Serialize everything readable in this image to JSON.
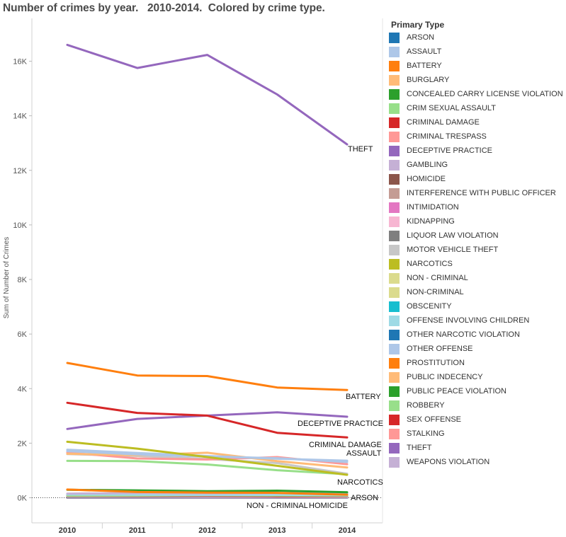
{
  "title": "Number of crimes by year.   2010-2014.  Colored by crime type.",
  "legend": {
    "title": "Primary Type",
    "items": [
      {
        "label": "ARSON",
        "color": "#1f77b4"
      },
      {
        "label": "ASSAULT",
        "color": "#aec7e8"
      },
      {
        "label": "BATTERY",
        "color": "#ff7f0e"
      },
      {
        "label": "BURGLARY",
        "color": "#ffbb78"
      },
      {
        "label": "CONCEALED CARRY LICENSE VIOLATION",
        "color": "#2ca02c"
      },
      {
        "label": "CRIM SEXUAL ASSAULT",
        "color": "#98df8a"
      },
      {
        "label": "CRIMINAL DAMAGE",
        "color": "#d62728"
      },
      {
        "label": "CRIMINAL TRESPASS",
        "color": "#ff9896"
      },
      {
        "label": "DECEPTIVE PRACTICE",
        "color": "#9467bd"
      },
      {
        "label": "GAMBLING",
        "color": "#c5b0d5"
      },
      {
        "label": "HOMICIDE",
        "color": "#8c564b"
      },
      {
        "label": "INTERFERENCE WITH PUBLIC OFFICER",
        "color": "#c49c94"
      },
      {
        "label": "INTIMIDATION",
        "color": "#e377c2"
      },
      {
        "label": "KIDNAPPING",
        "color": "#f7b6d2"
      },
      {
        "label": "LIQUOR LAW VIOLATION",
        "color": "#7f7f7f"
      },
      {
        "label": "MOTOR VEHICLE THEFT",
        "color": "#c7c7c7"
      },
      {
        "label": "NARCOTICS",
        "color": "#bcbd22"
      },
      {
        "label": "NON - CRIMINAL",
        "color": "#dbdb8d"
      },
      {
        "label": "NON-CRIMINAL",
        "color": "#dbdb8d"
      },
      {
        "label": "OBSCENITY",
        "color": "#17becf"
      },
      {
        "label": "OFFENSE INVOLVING CHILDREN",
        "color": "#9edae5"
      },
      {
        "label": "OTHER NARCOTIC VIOLATION",
        "color": "#1f77b4"
      },
      {
        "label": "OTHER OFFENSE",
        "color": "#aec7e8"
      },
      {
        "label": "PROSTITUTION",
        "color": "#ff7f0e"
      },
      {
        "label": "PUBLIC INDECENCY",
        "color": "#ffbb78"
      },
      {
        "label": "PUBLIC PEACE VIOLATION",
        "color": "#2ca02c"
      },
      {
        "label": "ROBBERY",
        "color": "#98df8a"
      },
      {
        "label": "SEX OFFENSE",
        "color": "#d62728"
      },
      {
        "label": "STALKING",
        "color": "#ff9896"
      },
      {
        "label": "THEFT",
        "color": "#9467bd"
      },
      {
        "label": "WEAPONS VIOLATION",
        "color": "#c5b0d5"
      }
    ]
  },
  "chart_data": {
    "type": "line",
    "title": "Number of crimes by year.   2010-2014.  Colored by crime type.",
    "xlabel": "",
    "ylabel": "Sum of Number of Crimes",
    "x": [
      "2010",
      "2011",
      "2012",
      "2013",
      "2014"
    ],
    "ylim": [
      -1000,
      17000
    ],
    "yticks": [
      0,
      2000,
      4000,
      6000,
      8000,
      10000,
      12000,
      14000,
      16000
    ],
    "ytick_labels": [
      "0K",
      "2K",
      "4K",
      "6K",
      "8K",
      "10K",
      "12K",
      "14K",
      "16K"
    ],
    "zero_line": "dotted",
    "legend_position": "right",
    "series": [
      {
        "name": "THEFT",
        "color": "#9467bd",
        "values": [
          16600,
          15750,
          16230,
          14780,
          12950
        ],
        "label": "THEFT"
      },
      {
        "name": "BATTERY",
        "color": "#ff7f0e",
        "values": [
          4940,
          4480,
          4460,
          4040,
          3950
        ],
        "label": "BATTERY"
      },
      {
        "name": "CRIMINAL DAMAGE",
        "color": "#d62728",
        "values": [
          3480,
          3110,
          3010,
          2380,
          2210
        ],
        "label": "CRIMINAL DAMAGE"
      },
      {
        "name": "DECEPTIVE PRACTICE",
        "color": "#9467bd",
        "values": [
          2520,
          2890,
          3010,
          3130,
          2970
        ],
        "label": "DECEPTIVE PRACTICE"
      },
      {
        "name": "NARCOTICS",
        "color": "#bcbd22",
        "values": [
          2050,
          1800,
          1490,
          1170,
          840
        ],
        "label": "NARCOTICS"
      },
      {
        "name": "OTHER OFFENSE",
        "color": "#aec7e8",
        "values": [
          1760,
          1640,
          1530,
          1430,
          1360
        ],
        "label": ""
      },
      {
        "name": "ASSAULT",
        "color": "#aec7e8",
        "values": [
          1710,
          1590,
          1510,
          1450,
          1310
        ],
        "label": "ASSAULT"
      },
      {
        "name": "BURGLARY",
        "color": "#ffbb78",
        "values": [
          1610,
          1560,
          1650,
          1340,
          1110
        ],
        "label": ""
      },
      {
        "name": "CRIMINAL TRESPASS",
        "color": "#ff9896",
        "values": [
          1660,
          1440,
          1400,
          1490,
          1230
        ],
        "label": ""
      },
      {
        "name": "MOTOR VEHICLE THEFT",
        "color": "#c7c7c7",
        "values": [
          1600,
          1530,
          1420,
          1270,
          880
        ],
        "label": ""
      },
      {
        "name": "ROBBERY",
        "color": "#98df8a",
        "values": [
          1350,
          1340,
          1220,
          1010,
          860
        ],
        "label": ""
      },
      {
        "name": "PROSTITUTION",
        "color": "#ff7f0e",
        "values": [
          300,
          210,
          190,
          180,
          110
        ],
        "label": ""
      },
      {
        "name": "PUBLIC PEACE VIOLATION",
        "color": "#2ca02c",
        "values": [
          290,
          270,
          240,
          260,
          200
        ],
        "label": ""
      },
      {
        "name": "WEAPONS VIOLATION",
        "color": "#c5b0d5",
        "values": [
          150,
          170,
          160,
          170,
          150
        ],
        "label": ""
      },
      {
        "name": "OFFENSE INVOLVING CHILDREN",
        "color": "#9edae5",
        "values": [
          120,
          110,
          100,
          110,
          90
        ],
        "label": ""
      },
      {
        "name": "CRIM SEXUAL ASSAULT",
        "color": "#98df8a",
        "values": [
          80,
          80,
          90,
          80,
          70
        ],
        "label": ""
      },
      {
        "name": "SEX OFFENSE",
        "color": "#d62728",
        "values": [
          80,
          70,
          70,
          60,
          60
        ],
        "label": ""
      },
      {
        "name": "INTERFERENCE WITH PUBLIC OFFICER",
        "color": "#c49c94",
        "values": [
          50,
          60,
          70,
          60,
          50
        ],
        "label": ""
      },
      {
        "name": "GAMBLING",
        "color": "#c5b0d5",
        "values": [
          40,
          40,
          30,
          30,
          20
        ],
        "label": ""
      },
      {
        "name": "LIQUOR LAW VIOLATION",
        "color": "#7f7f7f",
        "values": [
          40,
          30,
          30,
          20,
          10
        ],
        "label": ""
      },
      {
        "name": "HOMICIDE",
        "color": "#8c564b",
        "values": [
          30,
          30,
          40,
          30,
          30
        ],
        "label": "HOMICIDE"
      },
      {
        "name": "ARSON",
        "color": "#1f77b4",
        "values": [
          20,
          20,
          20,
          20,
          20
        ],
        "label": "ARSON"
      },
      {
        "name": "STALKING",
        "color": "#ff9896",
        "values": [
          10,
          10,
          10,
          10,
          10
        ],
        "label": ""
      },
      {
        "name": "INTIMIDATION",
        "color": "#e377c2",
        "values": [
          10,
          10,
          10,
          10,
          10
        ],
        "label": ""
      },
      {
        "name": "KIDNAPPING",
        "color": "#f7b6d2",
        "values": [
          10,
          10,
          10,
          10,
          10
        ],
        "label": ""
      },
      {
        "name": "OTHER NARCOTIC VIOLATION",
        "color": "#1f77b4",
        "values": [
          2,
          2,
          2,
          2,
          2
        ],
        "label": ""
      },
      {
        "name": "NON - CRIMINAL",
        "color": "#dbdb8d",
        "values": [
          1,
          1,
          1,
          2,
          5
        ],
        "label": "NON - CRIMINAL"
      },
      {
        "name": "OBSCENITY",
        "color": "#17becf",
        "values": [
          2,
          2,
          2,
          2,
          2
        ],
        "label": ""
      }
    ]
  }
}
